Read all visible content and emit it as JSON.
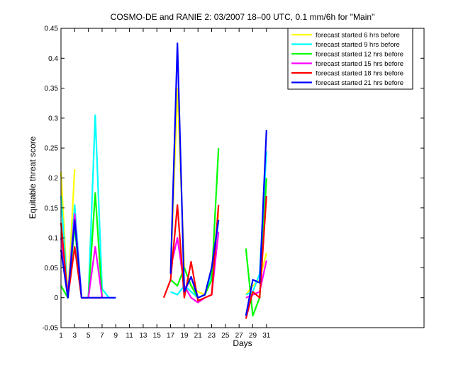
{
  "chart_data": {
    "type": "line",
    "title": "COSMO-DE and RANIE 2: 03/2007 18–00 UTC, 0.1 mm/6h for \"Main\"",
    "xlabel": "Days",
    "ylabel": "Equitable threat score",
    "xlim": [
      1,
      54
    ],
    "ylim": [
      -0.05,
      0.45
    ],
    "xticks": [
      1,
      3,
      5,
      7,
      9,
      11,
      13,
      15,
      17,
      19,
      21,
      23,
      25,
      27,
      29,
      31
    ],
    "yticks": [
      -0.05,
      0,
      0.05,
      0.1,
      0.15,
      0.2,
      0.25,
      0.3,
      0.35,
      0.4,
      0.45
    ],
    "xtick_labels": [
      "1",
      "3",
      "5",
      "7",
      "9",
      "11",
      "13",
      "15",
      "17",
      "19",
      "21",
      "23",
      "25",
      "27",
      "29",
      "31"
    ],
    "ytick_labels": [
      "-0.05",
      "0",
      "0.05",
      "0.1",
      "0.15",
      "0.2",
      "0.25",
      "0.3",
      "0.35",
      "0.4",
      "0.45"
    ],
    "legend_position": "top-right",
    "grid": false,
    "series": [
      {
        "name": "forecast started 6 hrs before",
        "color": "#ffff00",
        "segments": [
          [
            [
              1,
              0.21
            ],
            [
              2,
              0.0
            ],
            [
              3,
              0.215
            ]
          ],
          [
            [
              17,
              0.04
            ],
            [
              18,
              0.35
            ],
            [
              19,
              0.05
            ],
            [
              20,
              0.02
            ],
            [
              21,
              0.01
            ],
            [
              22,
              0.005
            ],
            [
              23,
              0.05
            ],
            [
              24,
              0.14
            ]
          ],
          [
            [
              28,
              0.005
            ],
            [
              29,
              0.02
            ],
            [
              30,
              0.03
            ],
            [
              31,
              0.075
            ]
          ]
        ]
      },
      {
        "name": "forecast started 9 hrs before",
        "color": "#00ffff",
        "segments": [
          [
            [
              1,
              0.17
            ],
            [
              2,
              0.0
            ],
            [
              3,
              0.155
            ],
            [
              4,
              0.0
            ],
            [
              5,
              0.0
            ],
            [
              6,
              0.305
            ],
            [
              7,
              0.015
            ],
            [
              8,
              0.0
            ],
            [
              9,
              0.0
            ]
          ],
          [
            [
              17,
              0.01
            ],
            [
              18,
              0.005
            ],
            [
              19,
              0.02
            ],
            [
              20,
              0.01
            ],
            [
              21,
              0.0
            ],
            [
              22,
              0.005
            ],
            [
              23,
              0.04
            ],
            [
              24,
              0.13
            ]
          ],
          [
            [
              28,
              0.005
            ],
            [
              29,
              0.01
            ],
            [
              30,
              0.04
            ],
            [
              31,
              0.245
            ]
          ]
        ]
      },
      {
        "name": "forecast started 12 hrs before",
        "color": "#00ff00",
        "segments": [
          [
            [
              1,
              0.02
            ],
            [
              2,
              0.0
            ],
            [
              3,
              0.12
            ],
            [
              4,
              0.0
            ],
            [
              5,
              0.0
            ],
            [
              6,
              0.175
            ],
            [
              7,
              0.0
            ]
          ],
          [
            [
              17,
              0.03
            ],
            [
              18,
              0.02
            ],
            [
              19,
              0.05
            ],
            [
              20,
              0.02
            ],
            [
              21,
              0.0
            ],
            [
              22,
              0.005
            ],
            [
              23,
              0.03
            ],
            [
              24,
              0.25
            ]
          ],
          [
            [
              28,
              0.082
            ],
            [
              29,
              -0.03
            ],
            [
              30,
              0.0
            ],
            [
              31,
              0.2
            ]
          ]
        ]
      },
      {
        "name": "forecast started 15 hrs before",
        "color": "#ff00ff",
        "segments": [
          [
            [
              1,
              0.1
            ],
            [
              2,
              0.005
            ],
            [
              3,
              0.14
            ],
            [
              4,
              0.0
            ],
            [
              5,
              0.0
            ],
            [
              6,
              0.085
            ],
            [
              7,
              0.0
            ]
          ],
          [
            [
              17,
              0.05
            ],
            [
              18,
              0.1
            ],
            [
              19,
              0.02
            ],
            [
              20,
              0.0
            ],
            [
              21,
              -0.008
            ],
            [
              22,
              0.0
            ],
            [
              23,
              0.005
            ],
            [
              24,
              0.11
            ]
          ],
          [
            [
              28,
              0.0
            ],
            [
              29,
              0.005
            ],
            [
              30,
              0.01
            ],
            [
              31,
              0.062
            ]
          ]
        ]
      },
      {
        "name": "forecast started 18 hrs before",
        "color": "#ff0000",
        "segments": [
          [
            [
              1,
              0.125
            ],
            [
              2,
              0.0
            ],
            [
              3,
              0.085
            ],
            [
              4,
              0.0
            ],
            [
              5,
              0.0
            ],
            [
              6,
              0.0
            ],
            [
              7,
              0.0
            ]
          ],
          [
            [
              16,
              0.0
            ],
            [
              17,
              0.03
            ],
            [
              18,
              0.155
            ],
            [
              19,
              0.0
            ],
            [
              20,
              0.06
            ],
            [
              21,
              -0.005
            ],
            [
              22,
              0.0
            ],
            [
              23,
              0.005
            ],
            [
              24,
              0.155
            ]
          ],
          [
            [
              28,
              -0.035
            ],
            [
              29,
              0.01
            ],
            [
              30,
              0.0
            ],
            [
              31,
              0.17
            ]
          ]
        ]
      },
      {
        "name": "forecast started 21 hrs before",
        "color": "#0000ff",
        "segments": [
          [
            [
              1,
              0.08
            ],
            [
              2,
              0.0
            ],
            [
              3,
              0.13
            ],
            [
              4,
              0.0
            ],
            [
              5,
              0.0
            ],
            [
              6,
              0.0
            ],
            [
              7,
              0.0
            ],
            [
              8,
              0.0
            ],
            [
              9,
              0.0
            ]
          ],
          [
            [
              17,
              0.04
            ],
            [
              18,
              0.425
            ],
            [
              19,
              0.01
            ],
            [
              20,
              0.035
            ],
            [
              21,
              0.0
            ],
            [
              22,
              0.005
            ],
            [
              23,
              0.05
            ],
            [
              24,
              0.13
            ]
          ],
          [
            [
              28,
              -0.03
            ],
            [
              29,
              0.03
            ],
            [
              30,
              0.025
            ],
            [
              31,
              0.28
            ]
          ]
        ]
      }
    ]
  }
}
